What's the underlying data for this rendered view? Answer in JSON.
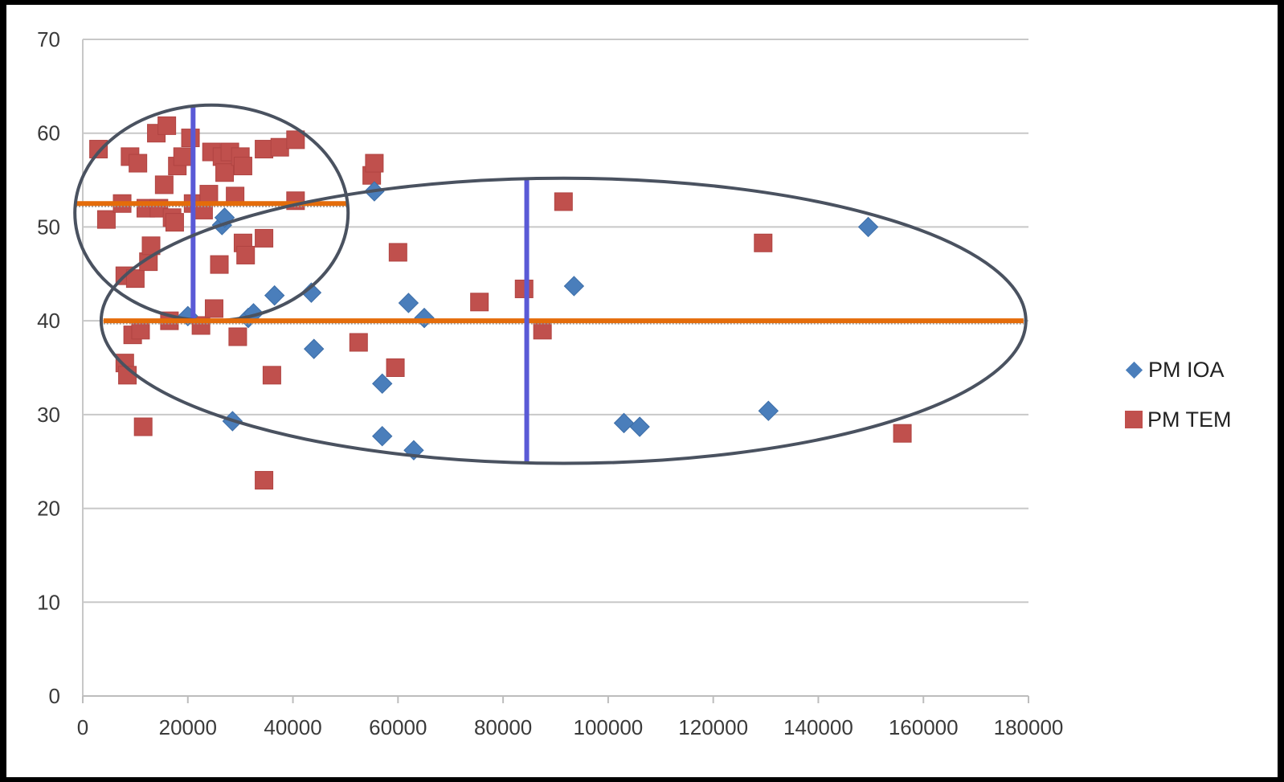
{
  "chart_data": {
    "type": "scatter",
    "title": "",
    "xlabel": "",
    "ylabel": "",
    "xlim": [
      0,
      180000
    ],
    "ylim": [
      0,
      70
    ],
    "x_ticks": [
      "0",
      "20000",
      "40000",
      "60000",
      "80000",
      "100000",
      "120000",
      "140000",
      "160000",
      "180000"
    ],
    "y_ticks": [
      "0",
      "10",
      "20",
      "30",
      "40",
      "50",
      "60",
      "70"
    ],
    "grid": "horizontal",
    "legend_position": "right",
    "series": [
      {
        "name": "PM IOA",
        "marker": "diamond",
        "color": "#4a7ebb",
        "points": [
          [
            20000,
            40.5
          ],
          [
            26500,
            50.2
          ],
          [
            27000,
            51
          ],
          [
            28500,
            29.3
          ],
          [
            31500,
            40.3
          ],
          [
            32500,
            40.8
          ],
          [
            36500,
            42.7
          ],
          [
            43500,
            43
          ],
          [
            44000,
            37
          ],
          [
            55500,
            53.8
          ],
          [
            57000,
            33.3
          ],
          [
            57000,
            27.7
          ],
          [
            62000,
            41.9
          ],
          [
            63000,
            26.2
          ],
          [
            65000,
            40.3
          ],
          [
            93500,
            43.7
          ],
          [
            103000,
            29.1
          ],
          [
            106000,
            28.7
          ],
          [
            130500,
            30.4
          ],
          [
            149500,
            50
          ]
        ]
      },
      {
        "name": "PM TEM",
        "marker": "square",
        "color": "#c0504d",
        "points": [
          [
            3000,
            58.3
          ],
          [
            4500,
            50.8
          ],
          [
            7500,
            52.5
          ],
          [
            8000,
            44.8
          ],
          [
            8000,
            35.5
          ],
          [
            8500,
            34.2
          ],
          [
            9000,
            57.5
          ],
          [
            9500,
            38.5
          ],
          [
            10000,
            44.5
          ],
          [
            10500,
            56.8
          ],
          [
            11000,
            39
          ],
          [
            11500,
            28.7
          ],
          [
            12000,
            52
          ],
          [
            12500,
            46.3
          ],
          [
            13000,
            48
          ],
          [
            14000,
            60
          ],
          [
            14500,
            52
          ],
          [
            15500,
            54.5
          ],
          [
            16000,
            60.8
          ],
          [
            16500,
            40
          ],
          [
            17000,
            51
          ],
          [
            17500,
            50.5
          ],
          [
            18000,
            56.5
          ],
          [
            19000,
            57.5
          ],
          [
            20500,
            59.5
          ],
          [
            21000,
            52.5
          ],
          [
            22500,
            39.5
          ],
          [
            23000,
            51.8
          ],
          [
            24000,
            53.5
          ],
          [
            24500,
            58
          ],
          [
            25000,
            41.3
          ],
          [
            26000,
            46
          ],
          [
            26500,
            57.5
          ],
          [
            27000,
            55.8
          ],
          [
            28000,
            58
          ],
          [
            29000,
            53.3
          ],
          [
            29500,
            38.3
          ],
          [
            30000,
            57.5
          ],
          [
            30500,
            48.3
          ],
          [
            30500,
            56.5
          ],
          [
            31000,
            47
          ],
          [
            34500,
            23
          ],
          [
            34500,
            58.3
          ],
          [
            34500,
            48.8
          ],
          [
            36000,
            34.2
          ],
          [
            37500,
            58.5
          ],
          [
            40500,
            59.3
          ],
          [
            40500,
            52.8
          ],
          [
            52500,
            37.7
          ],
          [
            55000,
            55.5
          ],
          [
            55500,
            56.8
          ],
          [
            59500,
            35
          ],
          [
            60000,
            47.3
          ],
          [
            75500,
            42
          ],
          [
            84000,
            43.4
          ],
          [
            87500,
            39
          ],
          [
            91500,
            52.7
          ],
          [
            129500,
            48.3
          ],
          [
            156000,
            28
          ]
        ]
      }
    ],
    "annotations": {
      "small_cluster": {
        "mean_x": 21000,
        "mean_y": 52.5,
        "ellipse": {
          "cx": 24500,
          "cy": 51.5,
          "rx": 26000,
          "ry": 11.5
        }
      },
      "large_cluster": {
        "mean_x": 84500,
        "mean_y": 40,
        "ellipse": {
          "cx": 91500,
          "cy": 40,
          "rx": 88000,
          "ry": 15.2
        }
      },
      "mean_line_color": "#e46c0a",
      "mean_marker_color": "#5a5ad6",
      "ellipse_color": "#4a5260"
    }
  }
}
